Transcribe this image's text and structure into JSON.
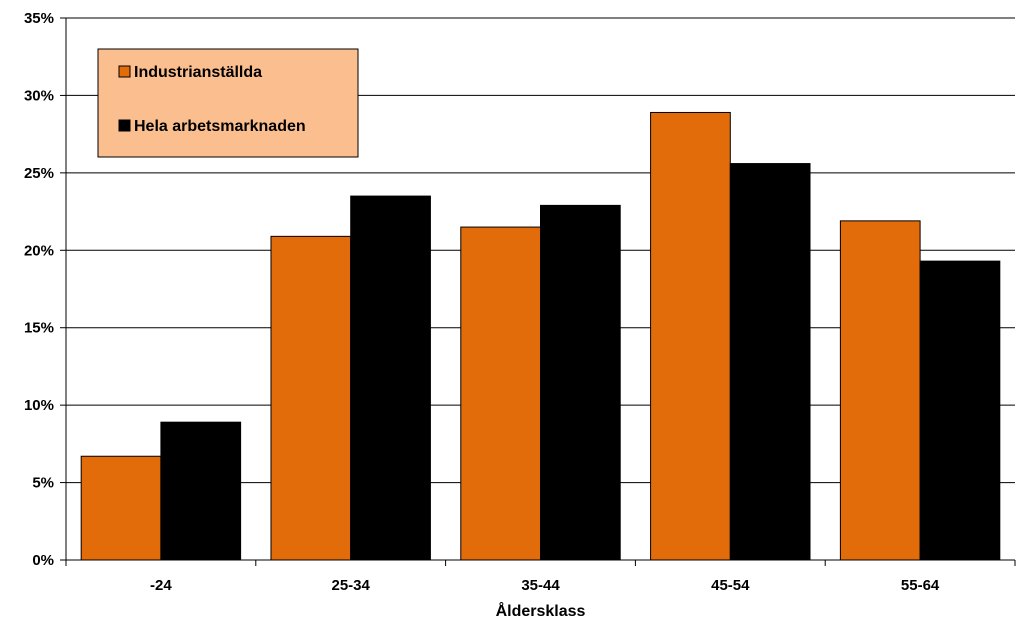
{
  "chart_data": {
    "type": "bar",
    "categories": [
      "-24",
      "25-34",
      "35-44",
      "45-54",
      "55-64"
    ],
    "series": [
      {
        "name": "Industrianställda",
        "values": [
          6.7,
          20.9,
          21.5,
          28.9,
          21.9
        ],
        "color": "#E36C0A"
      },
      {
        "name": "Hela arbetsmarknaden",
        "values": [
          8.9,
          23.5,
          22.9,
          25.6,
          19.3
        ],
        "color": "#000000"
      }
    ],
    "xlabel": "Åldersklass",
    "ylabel": "",
    "ylim": [
      0,
      35
    ],
    "yticks": [
      0,
      5,
      10,
      15,
      20,
      25,
      30,
      35
    ],
    "ytick_labels": [
      "0%",
      "5%",
      "10%",
      "15%",
      "20%",
      "25%",
      "30%",
      "35%"
    ],
    "grid": true,
    "legend": {
      "position": "top-left",
      "background": "#FBBF8F"
    }
  }
}
